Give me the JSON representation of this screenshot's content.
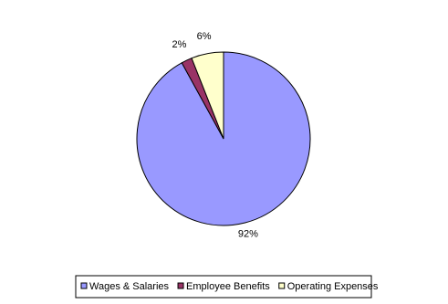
{
  "chart_data": {
    "type": "pie",
    "categories": [
      "Wages & Salaries",
      "Employee Benefits",
      "Operating Expenses"
    ],
    "values": [
      92,
      2,
      6
    ],
    "value_labels": [
      "92%",
      "2%",
      "6%"
    ],
    "colors": [
      "#9999ff",
      "#993366",
      "#ffffcc"
    ],
    "legend": "bottom"
  }
}
